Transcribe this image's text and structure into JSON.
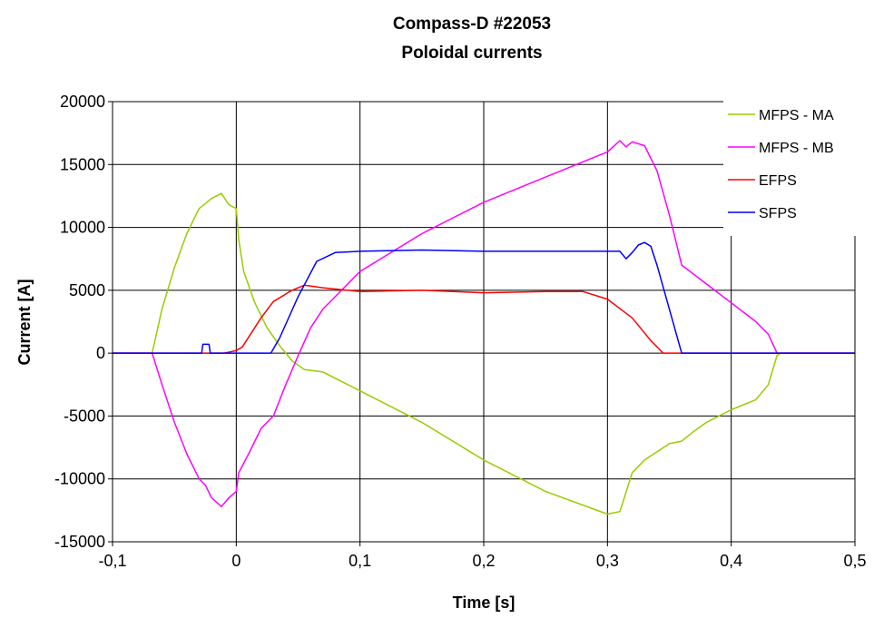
{
  "chart_data": {
    "type": "line",
    "title": "Compass-D #22053",
    "subtitle": "Poloidal currents",
    "xlabel": "Time [s]",
    "ylabel": "Current [A]",
    "xlim": [
      -0.1,
      0.5
    ],
    "ylim": [
      -15000,
      20000
    ],
    "x_ticks": [
      -0.1,
      0,
      0.1,
      0.2,
      0.3,
      0.4,
      0.5
    ],
    "x_tick_labels": [
      "-0,1",
      "0",
      "0,1",
      "0,2",
      "0,3",
      "0,4",
      "0,5"
    ],
    "y_ticks": [
      -15000,
      -10000,
      -5000,
      0,
      5000,
      10000,
      15000,
      20000
    ],
    "y_tick_labels": [
      "-15000",
      "-10000",
      "-5000",
      "0",
      "5000",
      "10000",
      "15000",
      "20000"
    ],
    "grid": true,
    "legend_position": "top-right",
    "series": [
      {
        "name": "MFPS - MA",
        "color": "#99cc00",
        "points": [
          [
            -0.1,
            0
          ],
          [
            -0.068,
            0
          ],
          [
            -0.06,
            3500
          ],
          [
            -0.05,
            6800
          ],
          [
            -0.04,
            9500
          ],
          [
            -0.03,
            11500
          ],
          [
            -0.02,
            12300
          ],
          [
            -0.012,
            12700
          ],
          [
            -0.006,
            11800
          ],
          [
            0,
            11500
          ],
          [
            0.002,
            9000
          ],
          [
            0.006,
            6500
          ],
          [
            0.015,
            4000
          ],
          [
            0.025,
            2000
          ],
          [
            0.035,
            600
          ],
          [
            0.045,
            -600
          ],
          [
            0.055,
            -1300
          ],
          [
            0.07,
            -1500
          ],
          [
            0.1,
            -3000
          ],
          [
            0.15,
            -5500
          ],
          [
            0.2,
            -8500
          ],
          [
            0.25,
            -11000
          ],
          [
            0.3,
            -12800
          ],
          [
            0.31,
            -12600
          ],
          [
            0.312,
            -12000
          ],
          [
            0.32,
            -9500
          ],
          [
            0.33,
            -8500
          ],
          [
            0.35,
            -7200
          ],
          [
            0.36,
            -7000
          ],
          [
            0.37,
            -6200
          ],
          [
            0.38,
            -5500
          ],
          [
            0.4,
            -4500
          ],
          [
            0.42,
            -3700
          ],
          [
            0.43,
            -2500
          ],
          [
            0.437,
            -200
          ],
          [
            0.44,
            0
          ],
          [
            0.5,
            0
          ]
        ]
      },
      {
        "name": "MFPS - MB",
        "color": "#ff00ff",
        "points": [
          [
            -0.1,
            0
          ],
          [
            -0.068,
            0
          ],
          [
            -0.06,
            -2500
          ],
          [
            -0.05,
            -5500
          ],
          [
            -0.04,
            -8000
          ],
          [
            -0.03,
            -10000
          ],
          [
            -0.025,
            -10500
          ],
          [
            -0.02,
            -11500
          ],
          [
            -0.012,
            -12200
          ],
          [
            -0.006,
            -11500
          ],
          [
            0,
            -11000
          ],
          [
            0.002,
            -9500
          ],
          [
            0.01,
            -8000
          ],
          [
            0.02,
            -6000
          ],
          [
            0.03,
            -5000
          ],
          [
            0.04,
            -2500
          ],
          [
            0.05,
            -200
          ],
          [
            0.06,
            2000
          ],
          [
            0.07,
            3500
          ],
          [
            0.1,
            6500
          ],
          [
            0.15,
            9500
          ],
          [
            0.2,
            12000
          ],
          [
            0.25,
            14000
          ],
          [
            0.3,
            16000
          ],
          [
            0.31,
            16900
          ],
          [
            0.315,
            16400
          ],
          [
            0.32,
            16800
          ],
          [
            0.33,
            16500
          ],
          [
            0.34,
            14500
          ],
          [
            0.35,
            11000
          ],
          [
            0.36,
            7000
          ],
          [
            0.38,
            5500
          ],
          [
            0.4,
            4000
          ],
          [
            0.42,
            2500
          ],
          [
            0.43,
            1500
          ],
          [
            0.437,
            0
          ],
          [
            0.44,
            0
          ],
          [
            0.5,
            0
          ]
        ]
      },
      {
        "name": "EFPS",
        "color": "#ff0000",
        "points": [
          [
            -0.1,
            0
          ],
          [
            -0.01,
            0
          ],
          [
            0,
            200
          ],
          [
            0.005,
            500
          ],
          [
            0.02,
            2800
          ],
          [
            0.03,
            4100
          ],
          [
            0.045,
            5000
          ],
          [
            0.055,
            5400
          ],
          [
            0.07,
            5200
          ],
          [
            0.1,
            4900
          ],
          [
            0.15,
            5000
          ],
          [
            0.2,
            4800
          ],
          [
            0.25,
            4900
          ],
          [
            0.28,
            4900
          ],
          [
            0.3,
            4300
          ],
          [
            0.32,
            2800
          ],
          [
            0.335,
            1000
          ],
          [
            0.345,
            0
          ],
          [
            0.5,
            0
          ]
        ]
      },
      {
        "name": "SFPS",
        "color": "#0000ff",
        "points": [
          [
            -0.1,
            0
          ],
          [
            -0.028,
            0
          ],
          [
            -0.027,
            700
          ],
          [
            -0.022,
            700
          ],
          [
            -0.021,
            0
          ],
          [
            0.028,
            0
          ],
          [
            0.035,
            1200
          ],
          [
            0.05,
            4500
          ],
          [
            0.065,
            7300
          ],
          [
            0.08,
            8000
          ],
          [
            0.1,
            8100
          ],
          [
            0.15,
            8200
          ],
          [
            0.2,
            8100
          ],
          [
            0.25,
            8100
          ],
          [
            0.31,
            8100
          ],
          [
            0.315,
            7500
          ],
          [
            0.32,
            8000
          ],
          [
            0.325,
            8600
          ],
          [
            0.33,
            8800
          ],
          [
            0.335,
            8500
          ],
          [
            0.34,
            7000
          ],
          [
            0.35,
            3500
          ],
          [
            0.36,
            0
          ],
          [
            0.5,
            0
          ]
        ]
      }
    ]
  }
}
